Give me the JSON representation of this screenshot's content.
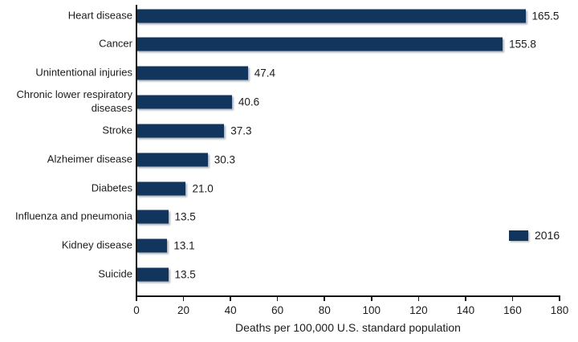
{
  "chart_data": {
    "type": "bar",
    "orientation": "horizontal",
    "title": "",
    "xlabel": "Deaths per 100,000 U.S. standard population",
    "ylabel": "",
    "xlim": [
      0,
      180
    ],
    "x_ticks": [
      "0",
      "20",
      "40",
      "60",
      "80",
      "100",
      "120",
      "140",
      "160",
      "180"
    ],
    "x_tick_values": [
      0,
      20,
      40,
      60,
      80,
      100,
      120,
      140,
      160,
      180
    ],
    "grid": "off",
    "legend": {
      "label": "2016",
      "position": "right"
    },
    "bar_color": "#12355E",
    "categories": [
      "Heart disease",
      "Cancer",
      "Unintentional injuries",
      "Chronic lower respiratory diseases",
      "Stroke",
      "Alzheimer disease",
      "Diabetes",
      "Influenza and pneumonia",
      "Kidney disease",
      "Suicide"
    ],
    "values": [
      165.5,
      155.8,
      47.4,
      40.6,
      37.3,
      30.3,
      21.0,
      13.5,
      13.1,
      13.5
    ],
    "value_labels": [
      "165.5",
      "155.8",
      "47.4",
      "40.6",
      "37.3",
      "30.3",
      "21.0",
      "13.5",
      "13.1",
      "13.5"
    ]
  }
}
